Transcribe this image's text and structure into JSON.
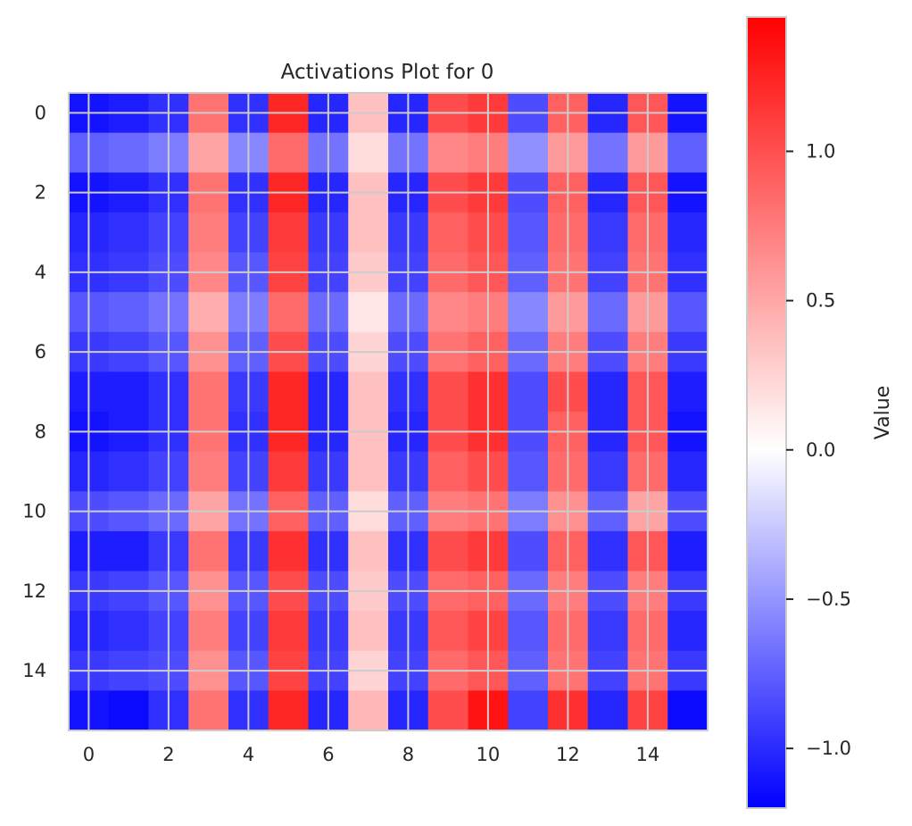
{
  "chart_data": {
    "type": "heatmap",
    "title": "Activations Plot for 0",
    "xlabel": "",
    "ylabel": "",
    "colorbar_label": "Value",
    "colormap": "bwr",
    "colormap_stops": [
      "#0000ff",
      "#ffffff",
      "#ff0000"
    ],
    "vmin": -1.2,
    "vmax": 1.45,
    "grid": true,
    "grid_color": "#cccccc",
    "x_ticks": [
      0,
      2,
      4,
      6,
      8,
      10,
      12,
      14
    ],
    "y_ticks": [
      0,
      2,
      4,
      6,
      8,
      10,
      12,
      14
    ],
    "colorbar_ticks": [
      {
        "value": 1.0,
        "label": "1.0"
      },
      {
        "value": 0.5,
        "label": "0.5"
      },
      {
        "value": 0.0,
        "label": "0.0"
      },
      {
        "value": -0.5,
        "label": "−0.5"
      },
      {
        "value": -1.0,
        "label": "−1.0"
      }
    ],
    "rows": 16,
    "cols": 16,
    "values": [
      [
        -1.1,
        -1.05,
        -0.95,
        0.85,
        -0.95,
        1.25,
        -1.0,
        0.45,
        -1.0,
        1.05,
        1.15,
        -0.8,
        0.95,
        -1.0,
        1.0,
        -1.1
      ],
      [
        -0.7,
        -0.65,
        -0.55,
        0.6,
        -0.5,
        0.9,
        -0.6,
        0.3,
        -0.6,
        0.75,
        0.8,
        -0.45,
        0.65,
        -0.6,
        0.65,
        -0.7
      ],
      [
        -1.1,
        -1.05,
        -0.95,
        0.85,
        -0.95,
        1.25,
        -1.0,
        0.45,
        -1.0,
        1.05,
        1.15,
        -0.8,
        0.95,
        -1.0,
        1.0,
        -1.1
      ],
      [
        -1.0,
        -0.95,
        -0.85,
        0.8,
        -0.85,
        1.15,
        -0.9,
        0.45,
        -0.9,
        0.95,
        1.05,
        -0.75,
        0.9,
        -0.9,
        0.9,
        -1.0
      ],
      [
        -0.95,
        -0.9,
        -0.8,
        0.75,
        -0.75,
        1.1,
        -0.85,
        0.4,
        -0.85,
        0.9,
        1.0,
        -0.7,
        0.85,
        -0.85,
        0.85,
        -0.95
      ],
      [
        -0.75,
        -0.7,
        -0.6,
        0.55,
        -0.55,
        0.9,
        -0.65,
        0.25,
        -0.65,
        0.75,
        0.8,
        -0.5,
        0.65,
        -0.65,
        0.65,
        -0.75
      ],
      [
        -0.9,
        -0.85,
        -0.75,
        0.7,
        -0.7,
        1.05,
        -0.8,
        0.35,
        -0.8,
        0.85,
        0.95,
        -0.65,
        0.8,
        -0.8,
        0.8,
        -0.9
      ],
      [
        -1.05,
        -1.05,
        -0.95,
        0.85,
        -0.9,
        1.25,
        -1.0,
        0.45,
        -0.95,
        1.05,
        1.2,
        -0.8,
        1.05,
        -1.0,
        1.0,
        -1.05
      ],
      [
        -1.1,
        -1.05,
        -0.95,
        0.85,
        -0.95,
        1.25,
        -1.0,
        0.45,
        -1.0,
        1.05,
        1.2,
        -0.8,
        0.95,
        -1.0,
        1.0,
        -1.1
      ],
      [
        -1.0,
        -0.95,
        -0.85,
        0.8,
        -0.85,
        1.15,
        -0.9,
        0.45,
        -0.9,
        0.95,
        1.05,
        -0.75,
        0.9,
        -0.9,
        0.9,
        -1.0
      ],
      [
        -0.8,
        -0.75,
        -0.65,
        0.6,
        -0.6,
        0.95,
        -0.7,
        0.3,
        -0.7,
        0.8,
        0.85,
        -0.55,
        0.7,
        -0.7,
        0.6,
        -0.8
      ],
      [
        -1.05,
        -1.05,
        -0.9,
        0.85,
        -0.9,
        1.2,
        -0.95,
        0.45,
        -0.95,
        1.05,
        1.15,
        -0.8,
        0.95,
        -0.95,
        1.0,
        -1.05
      ],
      [
        -0.9,
        -0.85,
        -0.75,
        0.7,
        -0.75,
        1.05,
        -0.8,
        0.4,
        -0.8,
        0.9,
        0.95,
        -0.65,
        0.8,
        -0.8,
        0.8,
        -0.9
      ],
      [
        -1.0,
        -0.95,
        -0.85,
        0.8,
        -0.85,
        1.15,
        -0.9,
        0.45,
        -0.9,
        1.0,
        1.1,
        -0.75,
        0.9,
        -0.9,
        0.9,
        -1.0
      ],
      [
        -0.9,
        -0.85,
        -0.8,
        0.7,
        -0.75,
        1.1,
        -0.85,
        0.35,
        -0.85,
        0.9,
        1.0,
        -0.7,
        0.85,
        -0.85,
        0.85,
        -0.9
      ],
      [
        -1.1,
        -1.15,
        -0.95,
        0.85,
        -0.95,
        1.25,
        -1.0,
        0.5,
        -1.0,
        1.05,
        1.35,
        -0.85,
        1.2,
        -1.0,
        1.1,
        -1.15
      ]
    ]
  }
}
